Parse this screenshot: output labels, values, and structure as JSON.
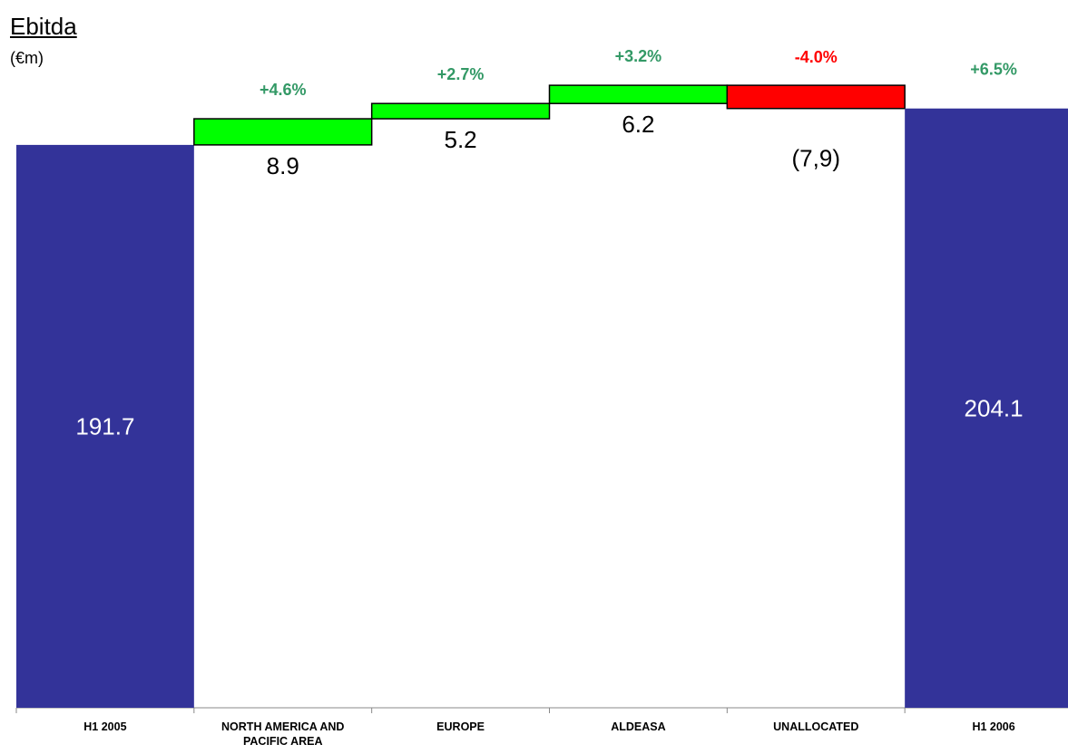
{
  "chart_data": {
    "type": "bar",
    "subtype": "waterfall",
    "title": "Ebitda",
    "unit": "(€m)",
    "categories": [
      "H1 2005",
      "NORTH AMERICA AND PACIFIC AREA",
      "EUROPE",
      "ALDEASA",
      "UNALLOCATED",
      "H1 2006"
    ],
    "steps": [
      {
        "category": "H1 2005",
        "kind": "total",
        "value": 191.7,
        "label": "191.7",
        "pct": ""
      },
      {
        "category": "NORTH AMERICA AND PACIFIC AREA",
        "kind": "delta",
        "value": 8.9,
        "label": "8.9",
        "pct": "+4.6%"
      },
      {
        "category": "EUROPE",
        "kind": "delta",
        "value": 5.2,
        "label": "5.2",
        "pct": "+2.7%"
      },
      {
        "category": "ALDEASA",
        "kind": "delta",
        "value": 6.2,
        "label": "6.2",
        "pct": "+3.2%"
      },
      {
        "category": "UNALLOCATED",
        "kind": "delta",
        "value": -7.9,
        "label": "(7,9)",
        "pct": "-4.0%"
      },
      {
        "category": "H1 2006",
        "kind": "total",
        "value": 204.1,
        "label": "204.1",
        "pct": "+6.5%"
      }
    ],
    "ylim": [
      0,
      218
    ],
    "grid": false,
    "colors": {
      "total": "#333399",
      "increase": "#00ff00",
      "decrease": "#ff0000",
      "pct_positive": "#339966",
      "pct_negative": "#ff0000",
      "total_text": "#ffffff",
      "delta_text": "#000000"
    }
  }
}
